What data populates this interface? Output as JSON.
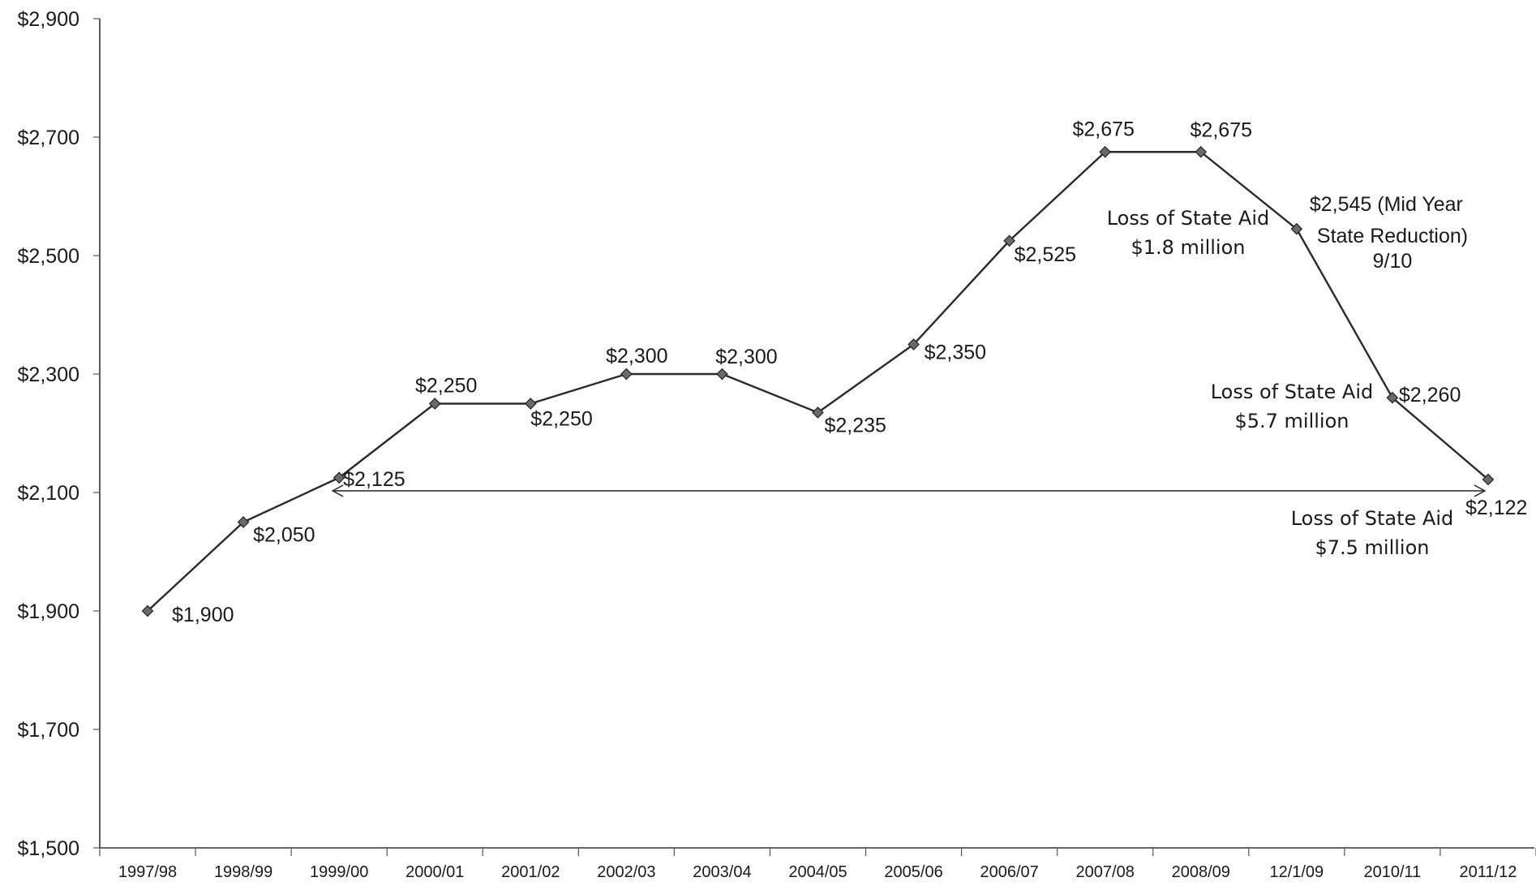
{
  "chart_data": {
    "type": "line",
    "title": "",
    "xlabel": "",
    "ylabel": "",
    "ylim": [
      1500,
      2900
    ],
    "y_ticks": [
      "$1,500",
      "$1,700",
      "$1,900",
      "$2,100",
      "$2,300",
      "$2,500",
      "$2,700",
      "$2,900"
    ],
    "categories": [
      "1997/98",
      "1998/99",
      "1999/00",
      "2000/01",
      "2001/02",
      "2002/03",
      "2003/04",
      "2004/05",
      "2005/06",
      "2006/07",
      "2007/08",
      "2008/09",
      "12/1/09",
      "2010/11",
      "2011/12"
    ],
    "values": [
      1900,
      2050,
      2125,
      2250,
      2250,
      2300,
      2300,
      2235,
      2350,
      2525,
      2675,
      2675,
      2545,
      2260,
      2122
    ],
    "data_labels": [
      "$1,900",
      "$2,050",
      "$2,125",
      "$2,250",
      "$2,250",
      "$2,300",
      "$2,300",
      "$2,235",
      "$2,350",
      "$2,525",
      "$2,675",
      "$2,675",
      "$2,545 (Mid Year",
      "$2,260",
      "$2,122"
    ],
    "grid": false,
    "legend": "none",
    "line_color": "#2a2a2a",
    "marker_color": "#6a6a6a",
    "annotations": [
      {
        "lines": [
          "State Reduction)",
          "9/10"
        ]
      },
      {
        "lines": [
          "Loss of State Aid",
          "$1.8 million"
        ]
      },
      {
        "lines": [
          "Loss of State Aid",
          "$5.7 million"
        ]
      },
      {
        "lines": [
          "Loss of State Aid",
          "$7.5 million"
        ]
      }
    ]
  }
}
